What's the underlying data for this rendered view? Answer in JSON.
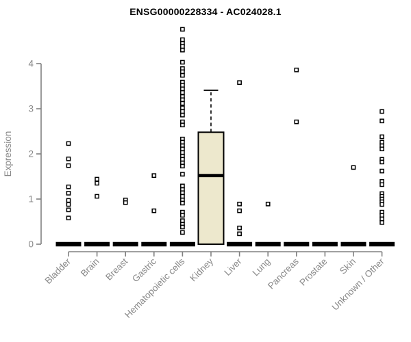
{
  "chart_data": {
    "type": "box",
    "title": "ENSG00000228334 - AC024028.1",
    "xlabel": "",
    "ylabel": "Expression",
    "ylim": [
      0,
      4.9
    ],
    "yticks": [
      0,
      1,
      2,
      3,
      4
    ],
    "grid": false,
    "legend": "none",
    "marker": "open-square",
    "categories": [
      "Bladder",
      "Brain",
      "Breast",
      "Gastric",
      "Hematopoietic cells",
      "Kidney",
      "Liver",
      "Lung",
      "Pancreas",
      "Prostate",
      "Skin",
      "Unknown / Other"
    ],
    "series": [
      {
        "label": "Bladder",
        "box": {
          "median": 0,
          "q1": 0,
          "q3": 0,
          "whisker_low": 0,
          "whisker_high": 0
        },
        "outliers": [
          2.23,
          1.89,
          1.74,
          1.27,
          1.13,
          0.97,
          0.88,
          0.76,
          0.58
        ]
      },
      {
        "label": "Brain",
        "box": {
          "median": 0,
          "q1": 0,
          "q3": 0,
          "whisker_low": 0,
          "whisker_high": 0
        },
        "outliers": [
          1.44,
          1.35,
          1.06
        ]
      },
      {
        "label": "Breast",
        "box": {
          "median": 0,
          "q1": 0,
          "q3": 0,
          "whisker_low": 0,
          "whisker_high": 0
        },
        "outliers": [
          0.98,
          0.92
        ]
      },
      {
        "label": "Gastric",
        "box": {
          "median": 0,
          "q1": 0,
          "q3": 0,
          "whisker_low": 0,
          "whisker_high": 0
        },
        "outliers": [
          1.52,
          0.74
        ]
      },
      {
        "label": "Hematopoietic cells",
        "box": {
          "median": 0,
          "q1": 0,
          "q3": 0,
          "whisker_low": 0,
          "whisker_high": 0
        },
        "outliers": [
          4.76,
          4.53,
          4.45,
          4.38,
          4.3,
          4.03,
          3.89,
          3.82,
          3.74,
          3.59,
          3.52,
          3.44,
          3.36,
          3.27,
          3.2,
          3.12,
          3.02,
          2.94,
          2.86,
          2.71,
          2.64,
          2.33,
          2.26,
          2.18,
          2.11,
          2.03,
          1.95,
          1.88,
          1.8,
          1.73,
          1.55,
          1.29,
          1.21,
          1.14,
          1.06,
          0.98,
          0.91,
          0.71,
          0.64,
          0.52,
          0.44,
          0.38,
          0.26
        ]
      },
      {
        "label": "Kidney",
        "box": {
          "median": 1.52,
          "q1": 0,
          "q3": 2.48,
          "whisker_low": 0,
          "whisker_high": 3.41
        },
        "outliers": []
      },
      {
        "label": "Liver",
        "box": {
          "median": 0,
          "q1": 0,
          "q3": 0,
          "whisker_low": 0,
          "whisker_high": 0
        },
        "outliers": [
          3.58,
          0.89,
          0.74,
          0.36,
          0.23
        ]
      },
      {
        "label": "Lung",
        "box": {
          "median": 0,
          "q1": 0,
          "q3": 0,
          "whisker_low": 0,
          "whisker_high": 0
        },
        "outliers": [
          0.89
        ]
      },
      {
        "label": "Pancreas",
        "box": {
          "median": 0,
          "q1": 0,
          "q3": 0,
          "whisker_low": 0,
          "whisker_high": 0
        },
        "outliers": [
          3.86,
          2.71
        ]
      },
      {
        "label": "Prostate",
        "box": {
          "median": 0,
          "q1": 0,
          "q3": 0,
          "whisker_low": 0,
          "whisker_high": 0
        },
        "outliers": []
      },
      {
        "label": "Skin",
        "box": {
          "median": 0,
          "q1": 0,
          "q3": 0,
          "whisker_low": 0,
          "whisker_high": 0
        },
        "outliers": [
          1.7
        ]
      },
      {
        "label": "Unknown / Other",
        "box": {
          "median": 0,
          "q1": 0,
          "q3": 0,
          "whisker_low": 0,
          "whisker_high": 0
        },
        "outliers": [
          2.94,
          2.73,
          2.38,
          2.26,
          2.18,
          2.11,
          1.88,
          1.82,
          1.62,
          1.39,
          1.32,
          1.12,
          1.06,
          1.0,
          0.94,
          0.88,
          0.71,
          0.64,
          0.56,
          0.48
        ]
      }
    ],
    "colors": {
      "box_fill": "#EDE8CD",
      "box_stroke": "#000000",
      "median": "#000000",
      "zero_bar": "#000000",
      "marker_stroke": "#000000",
      "marker_fill": "#ffffff",
      "axis_line": "#808080",
      "axis_text": "#888888",
      "title_text": "#000000"
    }
  }
}
